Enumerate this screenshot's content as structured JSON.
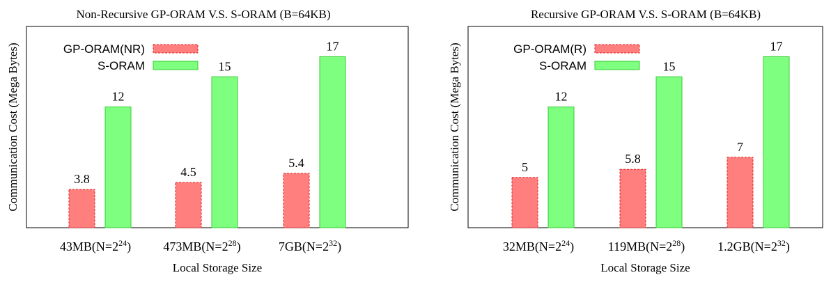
{
  "chart_data": [
    {
      "type": "bar",
      "title": "Non-Recursive GP-ORAM V.S. S-ORAM (B=64KB)",
      "xlabel": "Local Storage Size",
      "ylabel": "Communication Cost (Mega Bytes)",
      "categories": [
        {
          "main": "43MB(N=2",
          "sup": "24",
          "tail": ")"
        },
        {
          "main": "473MB(N=2",
          "sup": "28",
          "tail": ")"
        },
        {
          "main": "7GB(N=2",
          "sup": "32",
          "tail": ")"
        }
      ],
      "series": [
        {
          "name": "GP-ORAM(NR)",
          "values": [
            3.8,
            4.5,
            5.4
          ],
          "value_labels": [
            "3.8",
            "4.5",
            "5.4"
          ],
          "color": "#ff7f7f",
          "stroke": "#e0201f",
          "dashed": true
        },
        {
          "name": "S-ORAM",
          "values": [
            12,
            15,
            17
          ],
          "value_labels": [
            "12",
            "15",
            "17"
          ],
          "color": "#7fff7f",
          "stroke": "#33cc33",
          "dashed": false
        }
      ],
      "ylim": [
        0,
        20
      ],
      "legend": "top-left",
      "grid": false
    },
    {
      "type": "bar",
      "title": "Recursive GP-ORAM V.S. S-ORAM (B=64KB)",
      "xlabel": "Local Storage Size",
      "ylabel": "Communication Cost (Mega Bytes)",
      "categories": [
        {
          "main": "32MB(N=2",
          "sup": "24",
          "tail": ")"
        },
        {
          "main": "119MB(N=2",
          "sup": "28",
          "tail": ")"
        },
        {
          "main": "1.2GB(N=2",
          "sup": "32",
          "tail": ")"
        }
      ],
      "series": [
        {
          "name": "GP-ORAM(R)",
          "values": [
            5,
            5.8,
            7
          ],
          "value_labels": [
            "5",
            "5.8",
            "7"
          ],
          "color": "#ff7f7f",
          "stroke": "#e0201f",
          "dashed": true
        },
        {
          "name": "S-ORAM",
          "values": [
            12,
            15,
            17
          ],
          "value_labels": [
            "12",
            "15",
            "17"
          ],
          "color": "#7fff7f",
          "stroke": "#33cc33",
          "dashed": false
        }
      ],
      "ylim": [
        0,
        20
      ],
      "legend": "top-left",
      "grid": false
    }
  ]
}
